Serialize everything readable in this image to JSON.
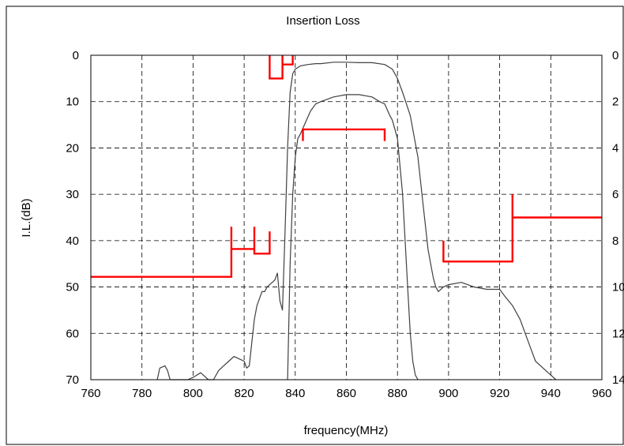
{
  "chart_data": {
    "type": "line",
    "title": "Insertion Loss",
    "xlabel": "frequency(MHz)",
    "ylabel": "I.L.(dB)",
    "xlim": [
      760,
      960
    ],
    "ylim": [
      0,
      70
    ],
    "y_inverted": true,
    "y2lim": [
      0,
      14
    ],
    "grid": true,
    "grid_style": "dashed",
    "x_ticks": [
      "760",
      "780",
      "800",
      "820",
      "840",
      "860",
      "880",
      "900",
      "920",
      "940",
      "960"
    ],
    "y_ticks": [
      "0",
      "10",
      "20",
      "30",
      "40",
      "50",
      "60",
      "70"
    ],
    "y2_ticks": [
      "0",
      "2",
      "4",
      "6",
      "8",
      "10",
      "12",
      "14"
    ],
    "series": [
      {
        "color": "#404040",
        "x": [
          786,
          787,
          789,
          790,
          791,
          795,
          798,
          800,
          803,
          806,
          808,
          810,
          812,
          814,
          816,
          818,
          820,
          821,
          822,
          823,
          824,
          825,
          826,
          827,
          828,
          829,
          830,
          831,
          832,
          833,
          834,
          835,
          836,
          837,
          838,
          839,
          840,
          842,
          845,
          848,
          850,
          855,
          860,
          865,
          870,
          875,
          878,
          880,
          882,
          885,
          888,
          890,
          892,
          894,
          895,
          896,
          898,
          900,
          905,
          910,
          915,
          920,
          922,
          925,
          928,
          930,
          932,
          934,
          936,
          938,
          940,
          942
        ],
        "values": [
          70,
          67.5,
          67,
          68,
          70,
          70,
          70,
          69.5,
          68.5,
          70,
          70,
          68,
          67,
          66,
          65,
          65.5,
          66,
          67.5,
          67,
          62,
          57,
          54,
          52.5,
          51,
          51,
          50,
          49.5,
          49,
          48.5,
          47,
          53,
          55,
          38,
          20,
          8,
          4,
          3,
          2.3,
          2,
          1.8,
          1.8,
          1.5,
          1.5,
          1.6,
          1.6,
          2,
          3,
          5,
          8,
          13,
          22,
          32,
          42,
          48,
          50,
          51,
          50,
          49.5,
          49,
          50,
          50.5,
          50.5,
          52,
          54,
          57,
          60,
          63,
          66,
          67,
          68,
          69,
          70
        ]
      },
      {
        "color": "#404040",
        "x": [
          837,
          838,
          839,
          840,
          841,
          842,
          844,
          846,
          848,
          850,
          855,
          860,
          865,
          870,
          873,
          875,
          877,
          878,
          879,
          880,
          882,
          884,
          885,
          886,
          887,
          888
        ],
        "values": [
          70,
          45,
          30,
          22,
          18,
          17,
          14.5,
          12,
          10.5,
          10,
          9,
          8.5,
          8.5,
          9,
          10,
          10.5,
          13,
          14,
          16,
          18,
          30,
          50,
          60,
          66,
          69,
          70
        ]
      }
    ],
    "spec_masks": [
      {
        "color": "#ff0000",
        "x": [
          760,
          815,
          815,
          815,
          815,
          824,
          824,
          824,
          824,
          830,
          830,
          830
        ],
        "values": [
          47.8,
          47.8,
          37,
          41.8,
          41.8,
          41.8,
          37,
          41.8,
          42.8,
          42.8,
          42.8,
          38
        ]
      },
      {
        "color": "#ff0000",
        "x": [
          830,
          830,
          835,
          835,
          835,
          839,
          839
        ],
        "values": [
          0,
          5,
          5,
          0,
          2,
          2,
          0
        ]
      },
      {
        "color": "#ff0000",
        "x": [
          843,
          843,
          875,
          875
        ],
        "values": [
          18.5,
          16,
          16,
          18.5
        ]
      },
      {
        "color": "#ff0000",
        "x": [
          898,
          898,
          925,
          925,
          925,
          925,
          960
        ],
        "values": [
          40,
          44.5,
          44.5,
          40,
          30,
          35,
          35
        ]
      }
    ]
  }
}
